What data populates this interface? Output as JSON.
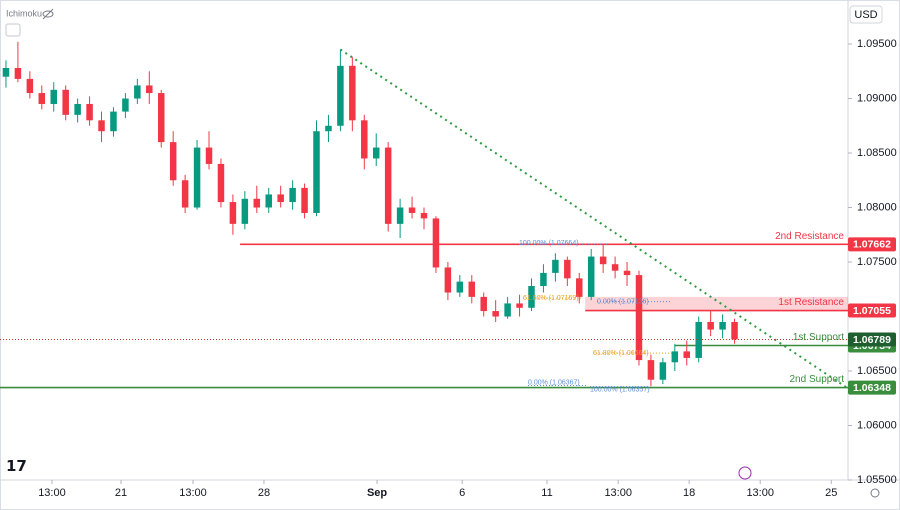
{
  "header": {
    "indicator": "Ichimoku",
    "currency": "USD"
  },
  "chart_data": {
    "type": "candlestick",
    "up_color": "#089981",
    "down_color": "#f23645",
    "xlim": [
      -0.5,
      70.5
    ],
    "xticks": [
      {
        "value": 3.85,
        "label": "13:00"
      },
      {
        "value": 9.63,
        "label": "21"
      },
      {
        "value": 15.66,
        "label": "13:00"
      },
      {
        "value": 21.6,
        "label": "28"
      },
      {
        "value": 31.07,
        "label": "Sep"
      },
      {
        "value": 38.2,
        "label": "6"
      },
      {
        "value": 45.3,
        "label": "11"
      },
      {
        "value": 51.26,
        "label": "13:00"
      },
      {
        "value": 57.2,
        "label": "18"
      },
      {
        "value": 63.15,
        "label": "13:00"
      },
      {
        "value": 69.1,
        "label": "25"
      }
    ],
    "ylim": [
      1.055,
      1.09858
    ],
    "yticks": [
      {
        "value": 1.095,
        "label": "1.09500"
      },
      {
        "value": 1.09,
        "label": "1.09000"
      },
      {
        "value": 1.085,
        "label": "1.08500"
      },
      {
        "value": 1.08,
        "label": "1.08000"
      },
      {
        "value": 1.075,
        "label": "1.07500"
      },
      {
        "value": 1.065,
        "label": "1.06500"
      },
      {
        "value": 1.06,
        "label": "1.06000"
      },
      {
        "value": 1.055,
        "label": "1.05500"
      }
    ],
    "ohlc": [
      [
        1.092,
        1.0935,
        1.091,
        1.0928
      ],
      [
        1.0928,
        1.0952,
        1.0915,
        1.0918
      ],
      [
        1.0918,
        1.0925,
        1.09,
        1.0905
      ],
      [
        1.0905,
        1.0912,
        1.089,
        1.0895
      ],
      [
        1.0895,
        1.0915,
        1.0888,
        1.0908
      ],
      [
        1.0908,
        1.0912,
        1.088,
        1.0885
      ],
      [
        1.0885,
        1.09,
        1.0878,
        1.0895
      ],
      [
        1.0895,
        1.0902,
        1.0875,
        1.088
      ],
      [
        1.088,
        1.0888,
        1.086,
        1.087
      ],
      [
        1.087,
        1.0892,
        1.0865,
        1.0888
      ],
      [
        1.0888,
        1.0905,
        1.0882,
        1.09
      ],
      [
        1.09,
        1.0918,
        1.0895,
        1.0912
      ],
      [
        1.0912,
        1.0925,
        1.0895,
        1.0905
      ],
      [
        1.0905,
        1.0908,
        1.0855,
        1.086
      ],
      [
        1.086,
        1.087,
        1.082,
        1.0825
      ],
      [
        1.0825,
        1.083,
        1.0795,
        1.08
      ],
      [
        1.08,
        1.0862,
        1.0798,
        1.0855
      ],
      [
        1.0855,
        1.087,
        1.0835,
        1.084
      ],
      [
        1.084,
        1.0845,
        1.08,
        1.0805
      ],
      [
        1.0805,
        1.0812,
        1.0775,
        1.0785
      ],
      [
        1.0785,
        1.0815,
        1.078,
        1.0808
      ],
      [
        1.0808,
        1.082,
        1.0795,
        1.08
      ],
      [
        1.08,
        1.0818,
        1.0795,
        1.0812
      ],
      [
        1.0812,
        1.082,
        1.08,
        1.0805
      ],
      [
        1.0805,
        1.0825,
        1.0798,
        1.0818
      ],
      [
        1.0818,
        1.0822,
        1.079,
        1.0795
      ],
      [
        1.0795,
        1.088,
        1.0792,
        1.087
      ],
      [
        1.087,
        1.0885,
        1.086,
        1.0875
      ],
      [
        1.0875,
        1.0945,
        1.087,
        1.093
      ],
      [
        1.093,
        1.0938,
        1.087,
        1.088
      ],
      [
        1.088,
        1.0885,
        1.0835,
        1.0845
      ],
      [
        1.0845,
        1.0868,
        1.0838,
        1.0855
      ],
      [
        1.0855,
        1.086,
        1.0778,
        1.0785
      ],
      [
        1.0785,
        1.0808,
        1.0772,
        1.08
      ],
      [
        1.08,
        1.081,
        1.079,
        1.0795
      ],
      [
        1.0795,
        1.08,
        1.078,
        1.079
      ],
      [
        1.079,
        1.0792,
        1.074,
        1.0745
      ],
      [
        1.0745,
        1.075,
        1.0715,
        1.0722
      ],
      [
        1.0722,
        1.0738,
        1.0718,
        1.0732
      ],
      [
        1.0732,
        1.0738,
        1.0712,
        1.0718
      ],
      [
        1.0718,
        1.0722,
        1.07,
        1.0705
      ],
      [
        1.0705,
        1.0715,
        1.0695,
        1.07
      ],
      [
        1.07,
        1.0718,
        1.0698,
        1.0712
      ],
      [
        1.0712,
        1.072,
        1.07,
        1.0708
      ],
      [
        1.0708,
        1.0735,
        1.0705,
        1.0728
      ],
      [
        1.0728,
        1.0748,
        1.0722,
        1.074
      ],
      [
        1.074,
        1.0758,
        1.0732,
        1.0752
      ],
      [
        1.0752,
        1.0755,
        1.0728,
        1.0735
      ],
      [
        1.0735,
        1.074,
        1.0712,
        1.0718
      ],
      [
        1.0718,
        1.0762,
        1.0715,
        1.0755
      ],
      [
        1.0755,
        1.0766,
        1.074,
        1.0748
      ],
      [
        1.0748,
        1.0755,
        1.0735,
        1.0742
      ],
      [
        1.0742,
        1.075,
        1.0728,
        1.0738
      ],
      [
        1.0738,
        1.0742,
        1.0655,
        1.066
      ],
      [
        1.066,
        1.0665,
        1.0636,
        1.0642
      ],
      [
        1.0642,
        1.0662,
        1.0638,
        1.0658
      ],
      [
        1.0658,
        1.0675,
        1.065,
        1.0668
      ],
      [
        1.0668,
        1.0678,
        1.0655,
        1.0662
      ],
      [
        1.0662,
        1.07,
        1.0658,
        1.0695
      ],
      [
        1.0695,
        1.0705,
        1.0682,
        1.0688
      ],
      [
        1.0688,
        1.0702,
        1.068,
        1.0695
      ],
      [
        1.0695,
        1.0698,
        1.0675,
        1.0679
      ]
    ],
    "levels": [
      {
        "name": "2nd Resistance",
        "value": 1.07662,
        "color": "#f23645"
      },
      {
        "name": "1st Resistance",
        "value": 1.07055,
        "color": "#f23645",
        "zone_top": 1.0718
      },
      {
        "name": "1st Support",
        "value": 1.06734,
        "color": "#388e3c"
      },
      {
        "name": "2nd Support",
        "value": 1.06348,
        "color": "#388e3c"
      }
    ],
    "last_price": {
      "value": 1.06789,
      "color": "#1e5e2f",
      "line_color": "#c0392b"
    },
    "fibonacci": [
      {
        "text": "100.00% (1.07664)",
        "value": 1.07664,
        "color": "#5b8fd6"
      },
      {
        "text": "61.80% (1.07169)",
        "value": 1.07169,
        "color": "#f0a020"
      },
      {
        "text": "0.00% (1.07136)",
        "value": 1.07136,
        "color": "#5b8fd6"
      },
      {
        "text": "61.80% (1.06664)",
        "value": 1.06664,
        "color": "#f0a020"
      },
      {
        "text": "0.00% (1.06367)",
        "value": 1.06367,
        "color": "#5b8fd6"
      },
      {
        "text": "100.00% (1.06357)",
        "value": 1.06357,
        "color": "#5b8fd6"
      }
    ],
    "trendline": {
      "x": [
        28,
        70.5
      ],
      "y": [
        1.0945,
        1.0634
      ],
      "color": "#2e9a3e"
    }
  }
}
